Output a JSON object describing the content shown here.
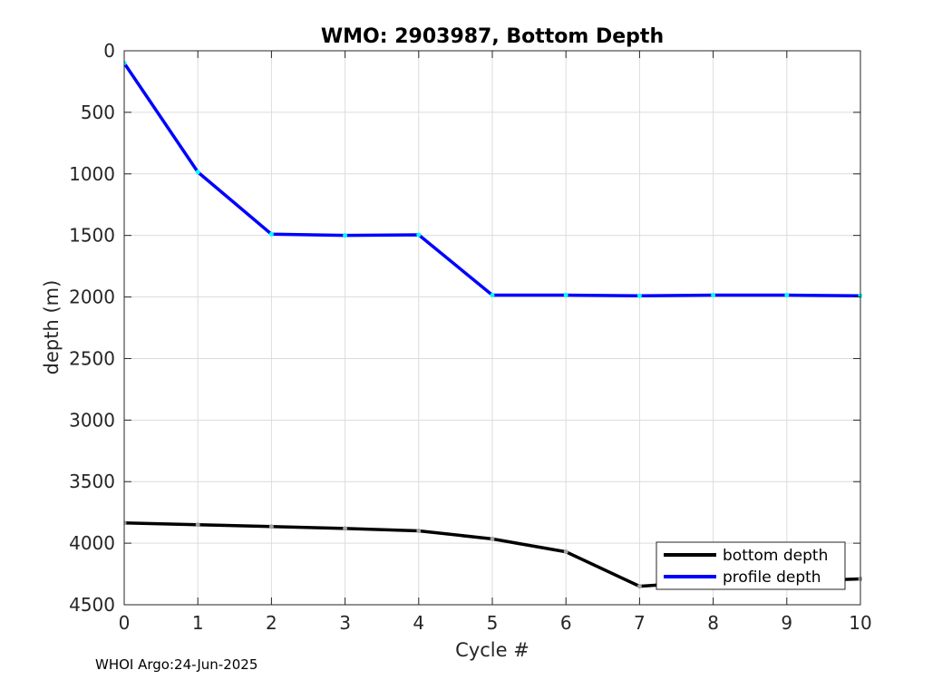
{
  "chart_data": {
    "type": "line",
    "title": "WMO: 2903987, Bottom Depth",
    "xlabel": "Cycle #",
    "ylabel": "depth (m)",
    "xlim": [
      0,
      10
    ],
    "ylim": [
      0,
      4500
    ],
    "y_reversed": true,
    "grid": true,
    "legend_position": "bottom-right",
    "x_ticks": [
      0,
      1,
      2,
      3,
      4,
      5,
      6,
      7,
      8,
      9,
      10
    ],
    "y_ticks": [
      0,
      500,
      1000,
      1500,
      2000,
      2500,
      3000,
      3500,
      4000,
      4500
    ],
    "series": [
      {
        "name": "bottom depth",
        "color": "#000000",
        "marker_color": "#a0a0a0",
        "x": [
          0,
          1,
          2,
          3,
          4,
          5,
          6,
          7,
          8,
          9,
          10
        ],
        "y": [
          3835,
          3850,
          3865,
          3880,
          3900,
          3965,
          4070,
          4350,
          4310,
          4310,
          4290
        ]
      },
      {
        "name": "profile depth",
        "color": "#0000ff",
        "marker_color": "#00ffff",
        "x": [
          0,
          1,
          2,
          3,
          4,
          5,
          6,
          7,
          8,
          9,
          10
        ],
        "y": [
          100,
          985,
          1490,
          1500,
          1495,
          1985,
          1985,
          1990,
          1985,
          1985,
          1990
        ]
      }
    ]
  },
  "footer": "WHOI Argo:24-Jun-2025"
}
